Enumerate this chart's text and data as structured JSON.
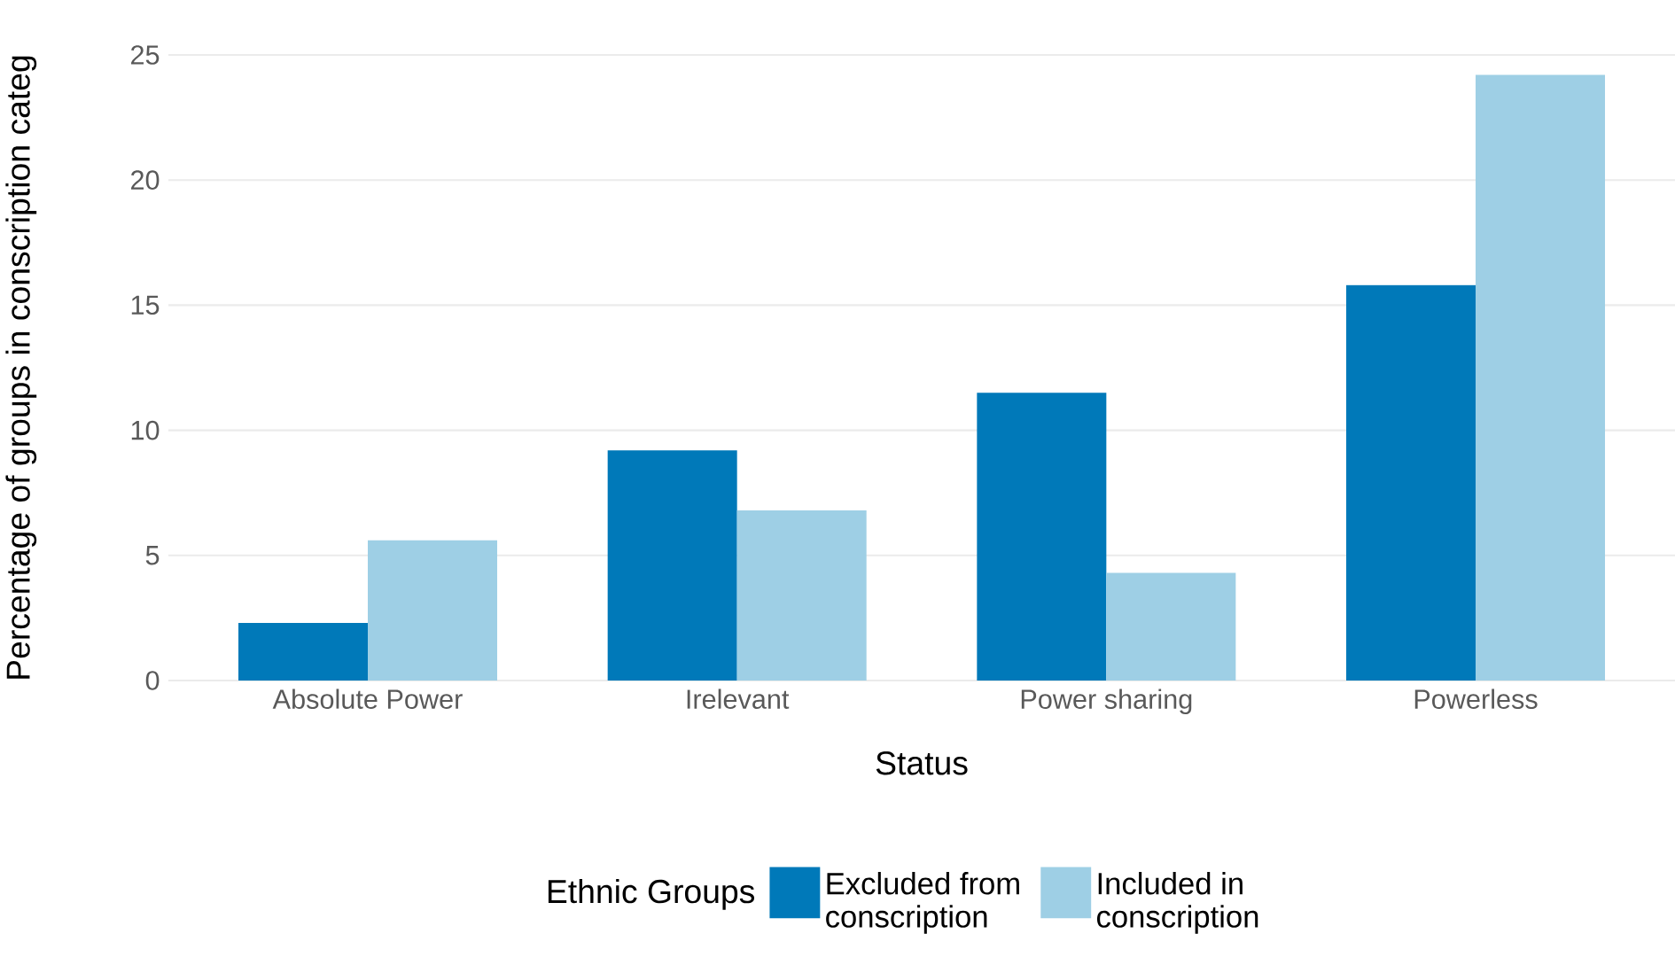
{
  "chart_data": {
    "type": "bar",
    "xlabel": "Status",
    "ylabel": "Percentage of groups in conscription categ",
    "categories": [
      "Absolute Power",
      "Irelevant",
      "Power sharing",
      "Powerless"
    ],
    "series": [
      {
        "name": "Excluded from conscription",
        "color": "#0079b9",
        "values": [
          2.3,
          9.2,
          11.5,
          15.8
        ]
      },
      {
        "name": "Included in conscription",
        "color": "#9ecfe5",
        "values": [
          5.6,
          6.8,
          4.3,
          24.2
        ]
      }
    ],
    "legend_title": "Ethnic Groups",
    "ylim": [
      0,
      25
    ],
    "yticks": [
      0,
      5,
      10,
      15,
      20,
      25
    ],
    "grid": "y",
    "legend": "bottom"
  }
}
